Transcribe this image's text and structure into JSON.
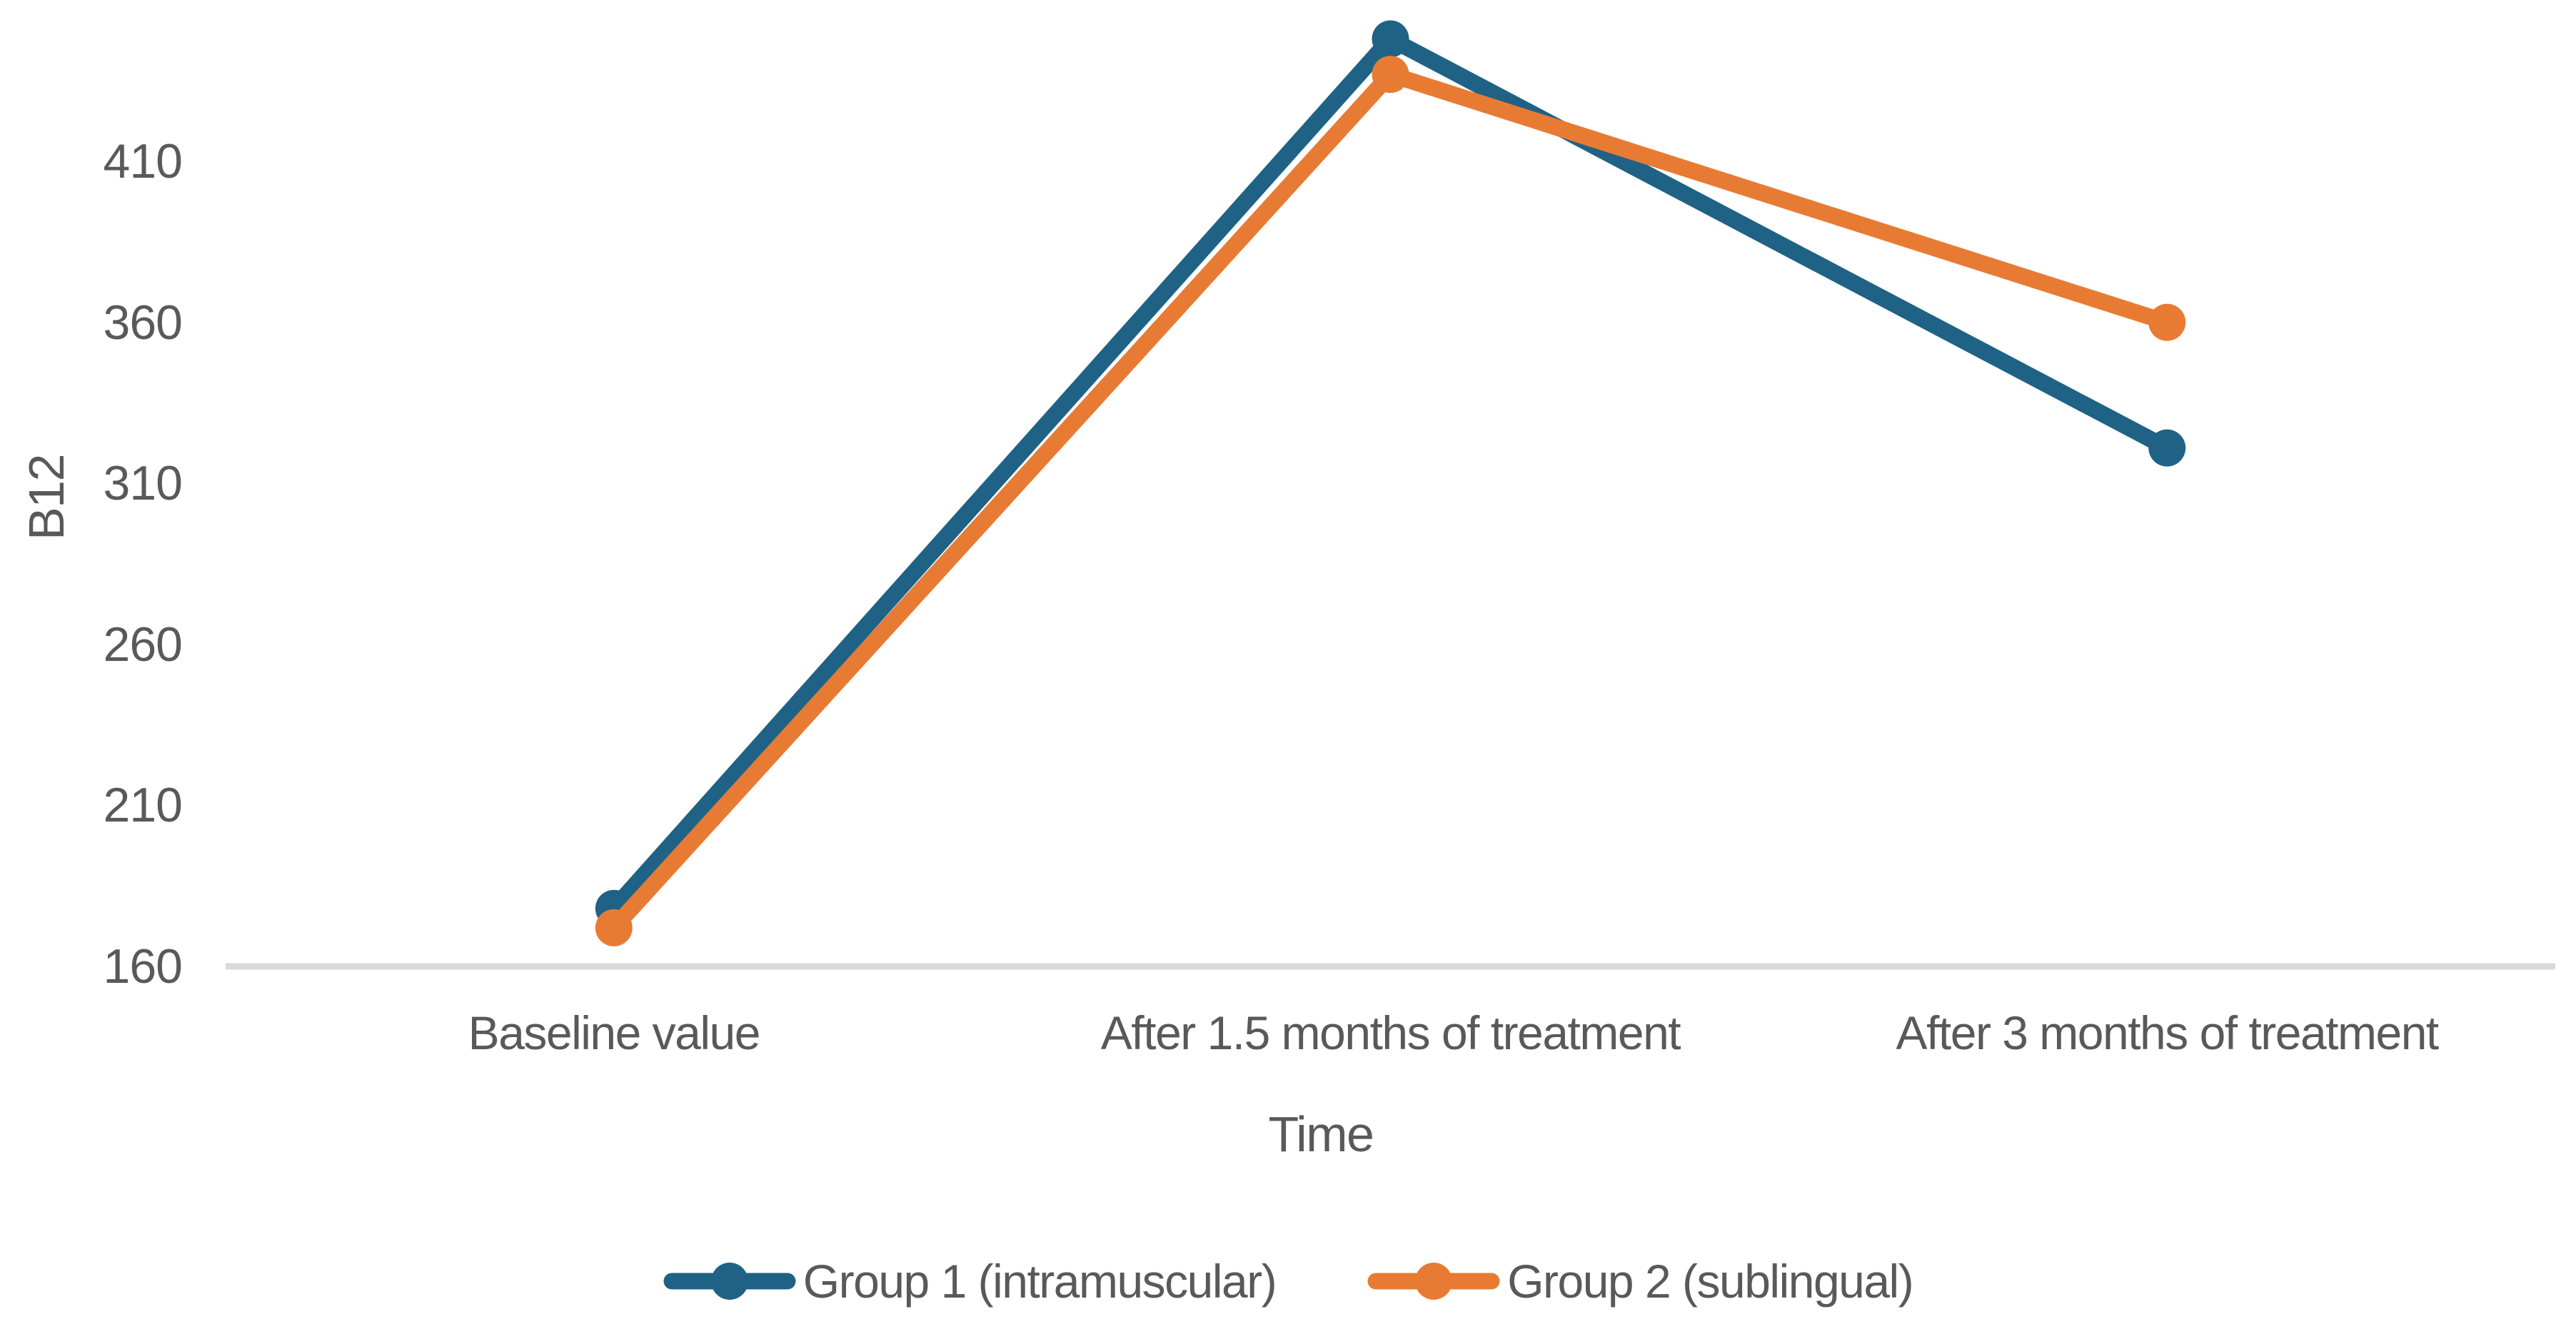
{
  "colors": {
    "series1": "#1F6286",
    "series2": "#E87B33",
    "axis_line": "#D9D9D9",
    "text": "#595959",
    "background": "#FFFFFF"
  },
  "y_axis": {
    "title": "B12",
    "ticks": [
      "410",
      "360",
      "310",
      "260",
      "210",
      "160"
    ]
  },
  "x_axis": {
    "title": "Time",
    "categories": [
      "Baseline value",
      "After 1.5 months of treatment",
      "After 3 months of treatment"
    ]
  },
  "legend": {
    "position": "bottom-center",
    "items": [
      {
        "label": "Group 1 (intramuscular)",
        "color": "#1F6286"
      },
      {
        "label": "Group 2 (sublingual)",
        "color": "#E87B33"
      }
    ]
  },
  "chart_data": {
    "type": "line",
    "title": "",
    "xlabel": "Time",
    "ylabel": "B12",
    "categories": [
      "Baseline value",
      "After 1.5 months of treatment",
      "After 3 months of treatment"
    ],
    "series": [
      {
        "name": "Group 1 (intramuscular)",
        "color": "#1F6286",
        "values": [
          178,
          448,
          321
        ]
      },
      {
        "name": "Group 2 (sublingual)",
        "color": "#E87B33",
        "values": [
          172,
          437,
          360
        ]
      }
    ],
    "ylim": [
      160,
      460
    ],
    "yticks": [
      160,
      210,
      260,
      310,
      360,
      410
    ],
    "grid": false,
    "marker": "circle",
    "legend_position": "bottom"
  }
}
